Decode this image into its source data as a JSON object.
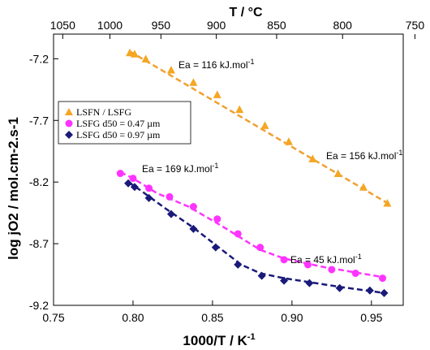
{
  "chart_data": {
    "type": "scatter",
    "xlabel": "1000/T  / K",
    "xlabel_sup": "-1",
    "ylabel": "log jO2 / mol.cm-2.s-1",
    "top_axis_title": "T / °C",
    "xlim": [
      0.75,
      0.97
    ],
    "ylim": [
      -9.2,
      -7.0
    ],
    "x_ticks": [
      "0.75",
      "0.80",
      "0.85",
      "0.90",
      "0.95"
    ],
    "y_ticks": [
      "-7.2",
      "-7.7",
      "-8.2",
      "-8.7",
      "-9.2"
    ],
    "top_ticks": [
      "1050",
      "1000",
      "950",
      "900",
      "850",
      "800",
      "750"
    ],
    "grid": false,
    "legend_position": "left",
    "series": [
      {
        "name": "LSFN / LSFG",
        "marker": "triangle",
        "color": "#f5a623",
        "x": [
          0.798,
          0.801,
          0.808,
          0.824,
          0.838,
          0.853,
          0.867,
          0.883,
          0.898,
          0.913,
          0.929,
          0.945,
          0.96
        ],
        "y": [
          -7.15,
          -7.16,
          -7.2,
          -7.29,
          -7.39,
          -7.49,
          -7.61,
          -7.74,
          -7.87,
          -8.01,
          -8.13,
          -8.24,
          -8.37
        ]
      },
      {
        "name": "LSFG d50 = 0.47 µm",
        "marker": "circle",
        "color": "#ff33ff",
        "x": [
          0.792,
          0.8,
          0.81,
          0.823,
          0.838,
          0.853,
          0.866,
          0.88,
          0.895,
          0.91,
          0.925,
          0.94,
          0.957
        ],
        "y": [
          -8.13,
          -8.17,
          -8.25,
          -8.32,
          -8.4,
          -8.5,
          -8.62,
          -8.73,
          -8.83,
          -8.87,
          -8.91,
          -8.94,
          -8.98
        ]
      },
      {
        "name": "LSFG d50 = 0.97 µm",
        "marker": "diamond",
        "color": "#1a1a7a",
        "x": [
          0.797,
          0.801,
          0.81,
          0.824,
          0.838,
          0.852,
          0.866,
          0.881,
          0.895,
          0.911,
          0.93,
          0.949,
          0.958
        ],
        "y": [
          -8.21,
          -8.24,
          -8.33,
          -8.46,
          -8.58,
          -8.73,
          -8.87,
          -8.96,
          -9.0,
          -9.02,
          -9.06,
          -9.08,
          -9.1
        ]
      }
    ],
    "trend_lines": [
      {
        "color": "#f0a030",
        "x": [
          0.798,
          0.96
        ],
        "y": [
          -7.14,
          -8.37
        ]
      },
      {
        "color": "#ff33ff",
        "x": [
          0.792,
          0.8,
          0.815,
          0.835,
          0.855,
          0.87,
          0.88,
          0.895,
          0.92,
          0.957
        ],
        "y": [
          -8.12,
          -8.17,
          -8.29,
          -8.4,
          -8.55,
          -8.67,
          -8.75,
          -8.82,
          -8.89,
          -8.97
        ]
      },
      {
        "color": "#1a1a7a",
        "x": [
          0.797,
          0.805,
          0.82,
          0.838,
          0.855,
          0.868,
          0.88,
          0.895,
          0.93,
          0.958
        ],
        "y": [
          -8.2,
          -8.27,
          -8.41,
          -8.57,
          -8.74,
          -8.87,
          -8.94,
          -8.98,
          -9.05,
          -9.1
        ]
      }
    ],
    "annotations": [
      {
        "text": "Ea = 116 kJ.mol",
        "sup": "-1"
      },
      {
        "text": "Ea = 156 kJ.mol",
        "sup": "-1"
      },
      {
        "text": "Ea = 169 kJ.mol",
        "sup": "-1"
      },
      {
        "text": "Ea = 45 kJ.mol",
        "sup": "-1"
      }
    ]
  }
}
